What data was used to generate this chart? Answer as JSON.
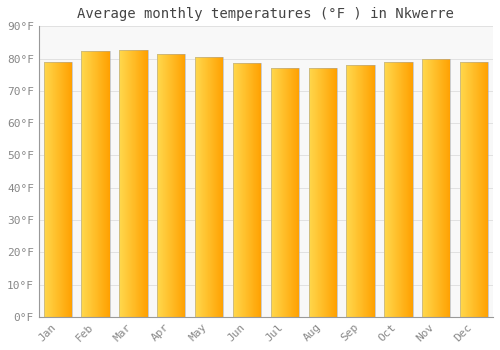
{
  "title": "Average monthly temperatures (°F ) in Nkwerre",
  "months": [
    "Jan",
    "Feb",
    "Mar",
    "Apr",
    "May",
    "Jun",
    "Jul",
    "Aug",
    "Sep",
    "Oct",
    "Nov",
    "Dec"
  ],
  "values": [
    79.0,
    82.2,
    82.6,
    81.5,
    80.5,
    78.5,
    77.0,
    77.0,
    78.0,
    79.0,
    80.0,
    79.0
  ],
  "bar_color_left": "#FFD84D",
  "bar_color_right": "#FFA500",
  "background_color": "#FFFFFF",
  "plot_bg_color": "#F8F8F8",
  "grid_color": "#DDDDDD",
  "text_color": "#888888",
  "title_color": "#444444",
  "ylim": [
    0,
    90
  ],
  "yticks": [
    0,
    10,
    20,
    30,
    40,
    50,
    60,
    70,
    80,
    90
  ],
  "title_fontsize": 10,
  "tick_fontsize": 8,
  "bar_width": 0.75,
  "figsize": [
    5.0,
    3.5
  ],
  "dpi": 100
}
